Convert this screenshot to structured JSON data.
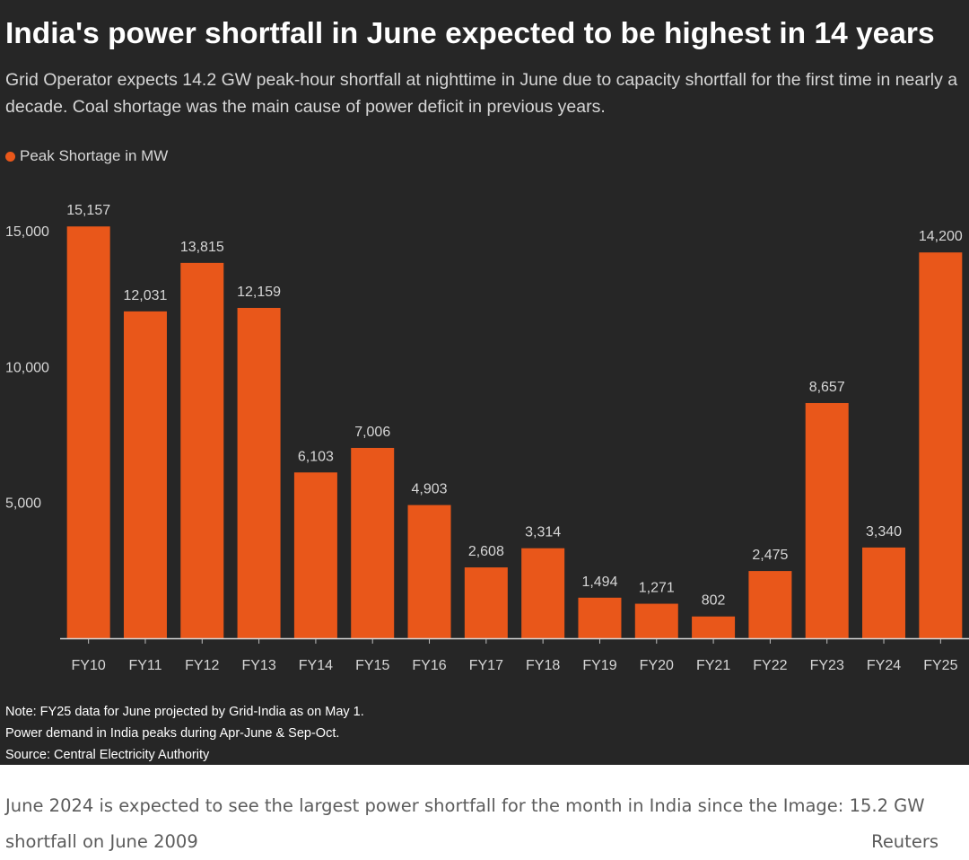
{
  "chart_data": {
    "type": "bar",
    "title": "India's power shortfall in June expected to be highest in 14 years",
    "subtitle": "Grid Operator expects 14.2 GW peak-hour shortfall at nighttime in June due to capacity shortfall for the first time in nearly a decade. Coal shortage was the main cause of power deficit in previous years.",
    "legend": [
      {
        "label": "Peak Shortage in MW",
        "color": "#e9571a"
      }
    ],
    "categories": [
      "FY10",
      "FY11",
      "FY12",
      "FY13",
      "FY14",
      "FY15",
      "FY16",
      "FY17",
      "FY18",
      "FY19",
      "FY20",
      "FY21",
      "FY22",
      "FY23",
      "FY24",
      "FY25"
    ],
    "series": [
      {
        "name": "Peak Shortage in MW",
        "values": [
          15157,
          12031,
          13815,
          12159,
          6103,
          7006,
          4903,
          2608,
          3314,
          1494,
          1271,
          802,
          2475,
          8657,
          3340,
          14200
        ]
      }
    ],
    "value_labels": [
      "15,157",
      "12,031",
      "13,815",
      "12,159",
      "6,103",
      "7,006",
      "4,903",
      "2,608",
      "3,314",
      "1,494",
      "1,271",
      "802",
      "2,475",
      "8,657",
      "3,340",
      "14,200"
    ],
    "yticks": [
      5000,
      10000,
      15000
    ],
    "ytick_labels": [
      "5,000",
      "10,000",
      "15,000"
    ],
    "ylim": [
      0,
      16500
    ],
    "xlabel": "",
    "ylabel": "",
    "grid": false,
    "bar_color": "#e9571a"
  },
  "notes": [
    "Note: FY25 data for June projected by Grid-India as on May 1.",
    "Power demand in India peaks during Apr-June & Sep-Oct.",
    "Source: Central Electricity Authority"
  ],
  "caption": {
    "text": "June 2024 is expected to see the largest power shortfall for the month in India since the Image: 15.2 GW shortfall on June 2009",
    "credit": "Reuters"
  }
}
